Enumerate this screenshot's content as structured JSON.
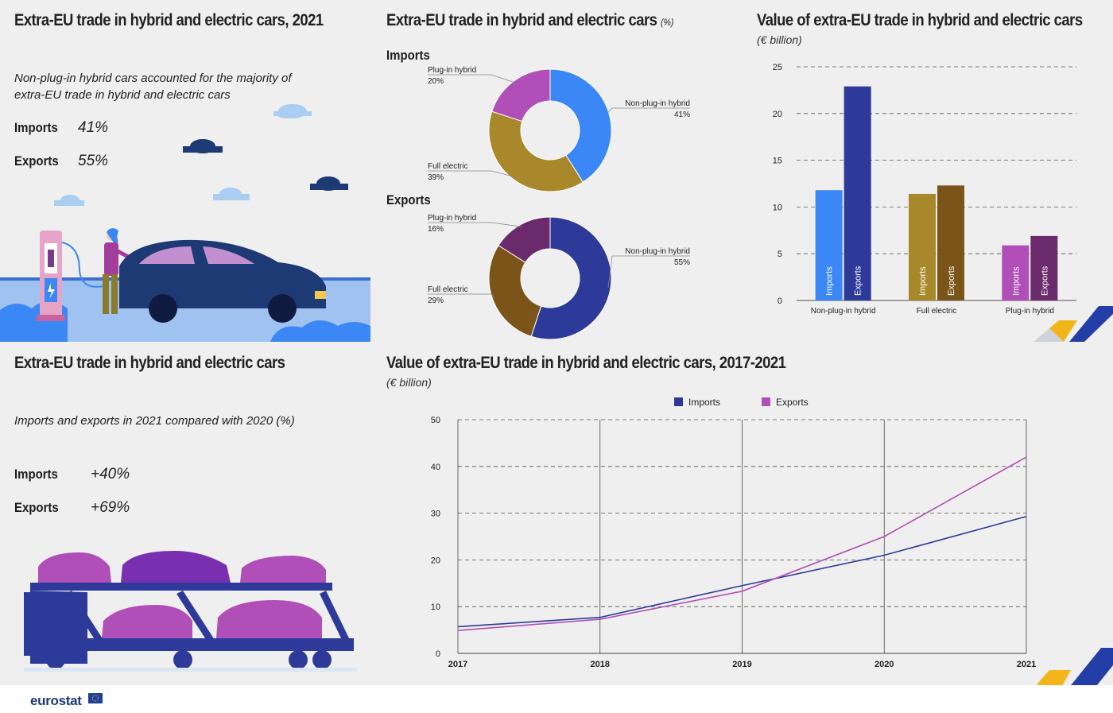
{
  "panel1": {
    "title": "Extra-EU trade in hybrid and electric cars, 2021",
    "note": "Non-plug-in hybrid cars accounted for the majority of extra-EU trade in hybrid and electric cars",
    "imports_label": "Imports",
    "imports_value": "41%",
    "exports_label": "Exports",
    "exports_value": "55%"
  },
  "panel2": {
    "title": "Extra-EU trade in hybrid and electric cars",
    "unit": "(%)",
    "imports_title": "Imports",
    "exports_title": "Exports"
  },
  "panel3": {
    "title": "Value of extra-EU trade in hybrid and electric cars",
    "unit": "(€ billion)"
  },
  "panel4": {
    "title": "Extra-EU trade in hybrid and electric cars",
    "note": "Imports and exports in 2021 compared with 2020 (%)",
    "imports_label": "Imports",
    "imports_value": "+40%",
    "exports_label": "Exports",
    "exports_value": "+69%"
  },
  "panel5": {
    "title": "Value of extra-EU trade in hybrid and electric cars, 2017-2021",
    "unit": "(€ billion)"
  },
  "footer": {
    "logo": "eurostat"
  },
  "colors": {
    "nonplug_imports": "#3b87f5",
    "nonplug_exports": "#2e3a9a",
    "full_imports": "#a8882a",
    "full_exports": "#7a5418",
    "plugin_imports": "#b04fb8",
    "plugin_exports": "#6b2a6b",
    "line_imports": "#2e3a9a",
    "line_exports": "#b04fb8"
  },
  "chart_data": [
    {
      "type": "pie",
      "title": "Imports",
      "slices": [
        {
          "name": "Non-plug-in hybrid",
          "value": 41,
          "label": "41%",
          "color": "#3b87f5"
        },
        {
          "name": "Full electric",
          "value": 39,
          "label": "39%",
          "color": "#a8882a"
        },
        {
          "name": "Plug-in hybrid",
          "value": 20,
          "label": "20%",
          "color": "#b04fb8"
        }
      ]
    },
    {
      "type": "pie",
      "title": "Exports",
      "slices": [
        {
          "name": "Non-plug-in hybrid",
          "value": 55,
          "label": "55%",
          "color": "#2e3a9a"
        },
        {
          "name": "Full electric",
          "value": 29,
          "label": "29%",
          "color": "#7a5418"
        },
        {
          "name": "Plug-in hybrid",
          "value": 16,
          "label": "16%",
          "color": "#6b2a6b"
        }
      ]
    },
    {
      "type": "bar",
      "categories": [
        "Non-plug-in hybrid",
        "Full electric",
        "Plug-in hybrid"
      ],
      "series": [
        {
          "name": "Imports",
          "values": [
            11.8,
            11.4,
            5.9
          ]
        },
        {
          "name": "Exports",
          "values": [
            22.9,
            12.3,
            6.9
          ]
        }
      ],
      "yticks": [
        0,
        5,
        10,
        15,
        20,
        25
      ],
      "ylim": [
        0,
        25
      ],
      "grid": true
    },
    {
      "type": "line",
      "x": [
        "2017",
        "2018",
        "2019",
        "2020",
        "2021"
      ],
      "series": [
        {
          "name": "Imports",
          "values": [
            5.7,
            7.7,
            14.5,
            21.0,
            29.3
          ]
        },
        {
          "name": "Exports",
          "values": [
            4.9,
            7.3,
            13.3,
            25.0,
            42.0
          ]
        }
      ],
      "yticks": [
        0,
        10,
        20,
        30,
        40,
        50
      ],
      "ylim": [
        0,
        50
      ],
      "legend": "top-center",
      "grid": true
    }
  ]
}
